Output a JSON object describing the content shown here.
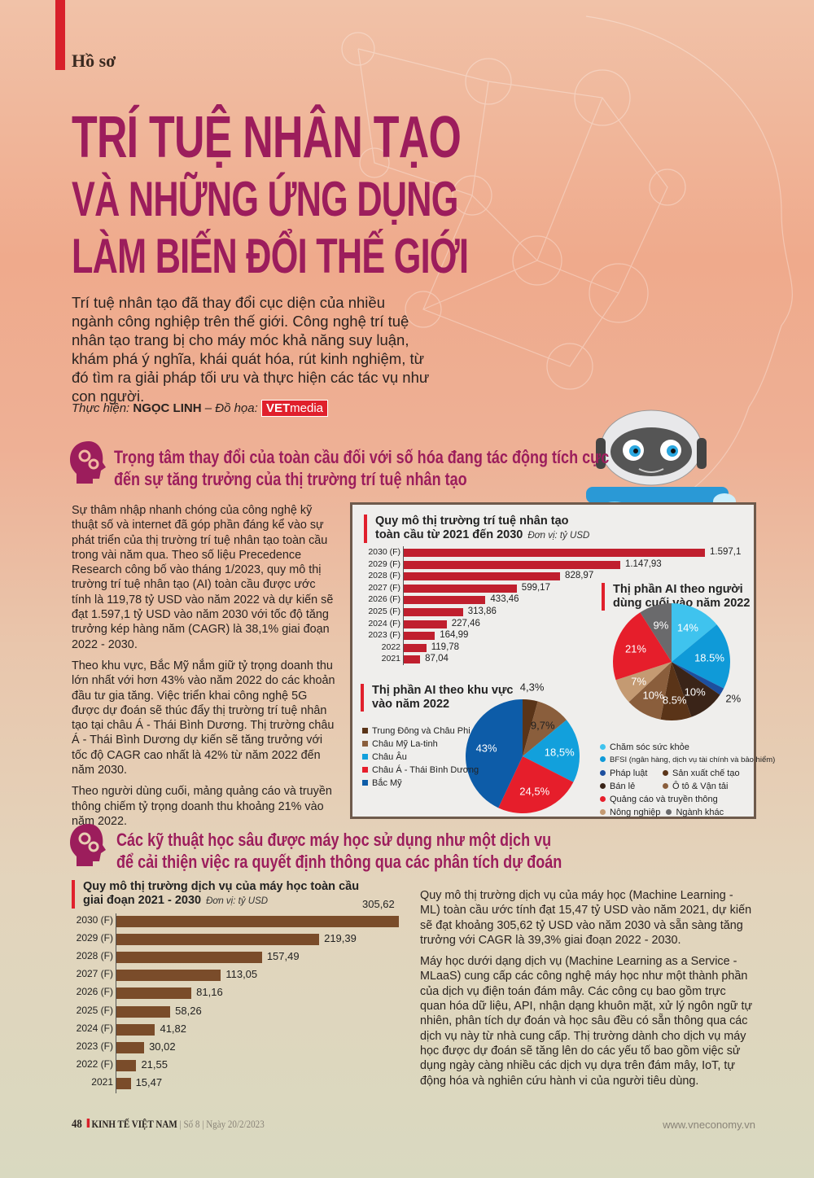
{
  "header": {
    "kicker": "Hồ sơ",
    "title_line1": "TRÍ TUỆ NHÂN TẠO",
    "title_line2": "VÀ NHỮNG ỨNG DỤNG",
    "title_line3": "LÀM BIẾN ĐỔI THẾ GIỚI",
    "intro": "Trí tuệ nhân tạo đã thay đổi cục diện của nhiều ngành công nghiệp trên thế giới. Công nghệ trí tuệ nhân tạo trang bị cho máy móc khả năng suy luận, khám phá ý nghĩa, khái quát hóa, rút kinh nghiệm, từ đó tìm ra giải pháp tối ưu và thực hiện các tác vụ như con người.",
    "credit_label": "Thực hiện:",
    "author": "NGỌC LINH",
    "graphic_label": "– Đồ họa:",
    "brand_vet": "VET",
    "brand_media": "media"
  },
  "section1": {
    "heading_line1": "Trọng tâm thay đổi của toàn cầu đối với số hóa đang tác động tích cực",
    "heading_line2": "đến sự tăng trưởng của thị trường trí tuệ nhân tạo",
    "paragraphs": [
      "Sự thâm nhập nhanh chóng của công nghệ kỹ thuật số và internet đã góp phần đáng kể vào sự phát triển của thị trường trí tuệ nhân tạo toàn cầu trong vài năm qua. Theo số liệu Precedence Research công bố vào tháng 1/2023, quy mô thị trường trí tuệ nhân tạo (AI) toàn cầu được ước tính là 119,78 tỷ USD vào năm 2022 và dự kiến sẽ đạt 1.597,1 tỷ USD vào năm 2030 với tốc độ tăng trưởng kép hàng năm (CAGR) là 38,1% giai đoạn 2022 - 2030.",
      "Theo khu vực, Bắc Mỹ nắm giữ tỷ trọng doanh thu lớn nhất với hơn 43% vào năm 2022 do các khoản đầu tư gia tăng. Việc triển khai công nghệ 5G được dự đoán sẽ thúc đẩy thị trường trí tuệ nhân tạo tại châu Á - Thái Bình Dương. Thị trường châu Á - Thái Bình Dương dự kiến sẽ tăng trưởng với tốc độ CAGR cao nhất là 42% từ năm 2022 đến năm 2030.",
      "Theo người dùng cuối, mảng quảng cáo và truyền thông chiếm tỷ trọng doanh thu khoảng 21% vào năm 2022."
    ]
  },
  "section2": {
    "heading_line1": "Các kỹ thuật học sâu được máy học sử dụng như một dịch vụ",
    "heading_line2": "để cải thiện việc ra quyết định thông qua các phân tích dự đoán",
    "paragraphs": [
      "Quy mô thị trường dịch vụ của máy học (Machine Learning - ML) toàn cầu ước tính đạt 15,47 tỷ USD vào năm 2021, dự kiến sẽ đạt khoảng 305,62 tỷ USD vào năm 2030 và sẵn sàng tăng trưởng với CAGR là 39,3% giai đoạn 2022 - 2030.",
      "Máy học dưới dạng dịch vụ (Machine Learning as a Service - MLaaS) cung cấp các công nghệ máy học như một thành phần của dịch vụ điện toán đám mây. Các công cụ bao gồm trực quan hóa dữ liệu, API, nhận dạng khuôn mặt, xử lý ngôn ngữ tự nhiên, phân tích dự đoán và học sâu đều có sẵn thông qua các dịch vụ này từ nhà cung cấp. Thị trường dành cho dịch vụ máy học được dự đoán sẽ tăng lên do các yếu tố bao gồm việc sử dụng ngày càng nhiều các dịch vụ dựa trên đám mây, IoT, tự động hóa và nghiên cứu hành vi của người tiêu dùng."
    ]
  },
  "footer": {
    "page": "48",
    "publication": "KINH TẾ VIỆT NAM",
    "issue": "Số 8",
    "date": "Ngày 20/2/2023",
    "website": "www.vneconomy.vn"
  },
  "chart_data": [
    {
      "type": "bar",
      "orientation": "horizontal",
      "title_line1": "Quy mô thị trường trí tuệ nhân tạo",
      "title_line2": "toàn cầu từ 2021 đến 2030",
      "unit": "Đơn vị: tỷ USD",
      "color": "#c01f2e",
      "categories": [
        "2030 (F)",
        "2029 (F)",
        "2028 (F)",
        "2027 (F)",
        "2026 (F)",
        "2025 (F)",
        "2024 (F)",
        "2023 (F)",
        "2022",
        "2021"
      ],
      "values": [
        1597.1,
        1147.93,
        828.97,
        599.17,
        433.46,
        313.86,
        227.46,
        164.99,
        119.78,
        87.04
      ],
      "labels": [
        "1.597,1",
        "1.147,93",
        "828,97",
        "599,17",
        "433,46",
        "313,86",
        "227,46",
        "164,99",
        "119,78",
        "87,04"
      ]
    },
    {
      "type": "pie",
      "title_line1": "Thị phần AI theo người",
      "title_line2": "dùng cuối vào năm 2022",
      "slices": [
        {
          "name": "Chăm sóc sức khỏe",
          "value": 14,
          "label": "14%",
          "color": "#3fc3ee"
        },
        {
          "name": "BFSI (ngân hàng, dịch vụ tài chính và bảo hiểm)",
          "value": 18.5,
          "label": "18.5%",
          "color": "#0f9ad8"
        },
        {
          "name": "Pháp luật",
          "value": 2,
          "label": "2%",
          "color": "#1d4f9e"
        },
        {
          "name": "Bán lẻ",
          "value": 10,
          "label": "10%",
          "color": "#3a2418"
        },
        {
          "name": "Sản xuất chế tạo",
          "value": 8.5,
          "label": "8.5%",
          "color": "#5a3418"
        },
        {
          "name": "Ô tô & Vận tải",
          "value": 10,
          "label": "10%",
          "color": "#8a5e3c"
        },
        {
          "name": "Nông nghiệp",
          "value": 7,
          "label": "7%",
          "color": "#c49a72"
        },
        {
          "name": "Quảng cáo và truyền thông",
          "value": 21,
          "label": "21%",
          "color": "#e61e2b"
        },
        {
          "name": "Ngành khác",
          "value": 9,
          "label": "9%",
          "color": "#6a6a6c"
        }
      ]
    },
    {
      "type": "pie",
      "title_line1": "Thị phần AI theo khu vực",
      "title_line2": "vào năm 2022",
      "slices": [
        {
          "name": "Trung Đông và Châu Phi",
          "value": 4.3,
          "label": "4,3%",
          "color": "#5a3418"
        },
        {
          "name": "Châu Mỹ La-tinh",
          "value": 9.7,
          "label": "9,7%",
          "color": "#8a5e3c"
        },
        {
          "name": "Châu Âu",
          "value": 18.5,
          "label": "18,5%",
          "color": "#12a0dc"
        },
        {
          "name": "Châu Á - Thái Bình Dương",
          "value": 24.5,
          "label": "24,5%",
          "color": "#e61e2b"
        },
        {
          "name": "Bắc Mỹ",
          "value": 43,
          "label": "43%",
          "color": "#0d5ca8"
        }
      ]
    },
    {
      "type": "bar",
      "orientation": "horizontal",
      "title_line1": "Quy mô thị trường dịch vụ của máy học toàn cầu",
      "title_line2": "giai đoạn 2021 - 2030",
      "unit": "Đơn vị: tỷ USD",
      "color": "#7a4c2a",
      "categories": [
        "2030 (F)",
        "2029 (F)",
        "2028 (F)",
        "2027 (F)",
        "2026 (F)",
        "2025 (F)",
        "2024 (F)",
        "2023 (F)",
        "2022 (F)",
        "2021"
      ],
      "values": [
        305.62,
        219.39,
        157.49,
        113.05,
        81.16,
        58.26,
        41.82,
        30.02,
        21.55,
        15.47
      ],
      "labels": [
        "305,62",
        "219,39",
        "157,49",
        "113,05",
        "81,16",
        "58,26",
        "41,82",
        "30,02",
        "21,55",
        "15,47"
      ]
    }
  ]
}
